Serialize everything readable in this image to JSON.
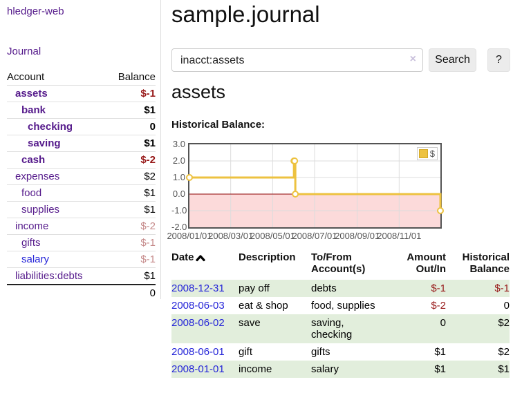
{
  "app": {
    "title": "hledger-web",
    "nav_journal": "Journal"
  },
  "colors": {
    "link_purple": "#551a8b",
    "link_blue": "#2424d8",
    "negative_strong": "#961717",
    "negative_faded": "#c58989",
    "row_green": "#e2eedc",
    "button_gray": "#ececec",
    "clear_icon": "#c9c0dc",
    "chart_series_gold": "#edc240",
    "chart_border_gray": "#545454"
  },
  "sidebar": {
    "table_headers": {
      "account": "Account",
      "balance": "Balance"
    },
    "accounts": [
      {
        "name": "assets",
        "balance": "$-1",
        "depth": 1,
        "bold": true,
        "negative": "strong",
        "link": "purple"
      },
      {
        "name": "bank",
        "balance": "$1",
        "depth": 2,
        "bold": true,
        "negative": null,
        "link": "purple"
      },
      {
        "name": "checking",
        "balance": "0",
        "depth": 3,
        "bold": true,
        "negative": null,
        "link": "purple"
      },
      {
        "name": "saving",
        "balance": "$1",
        "depth": 3,
        "bold": true,
        "negative": null,
        "link": "purple"
      },
      {
        "name": "cash",
        "balance": "$-2",
        "depth": 2,
        "bold": true,
        "negative": "strong",
        "link": "purple"
      },
      {
        "name": "expenses",
        "balance": "$2",
        "depth": 1,
        "bold": false,
        "negative": null,
        "link": "purple"
      },
      {
        "name": "food",
        "balance": "$1",
        "depth": 2,
        "bold": false,
        "negative": null,
        "link": "purple"
      },
      {
        "name": "supplies",
        "balance": "$1",
        "depth": 2,
        "bold": false,
        "negative": null,
        "link": "purple"
      },
      {
        "name": "income",
        "balance": "$-2",
        "depth": 1,
        "bold": false,
        "negative": "faded",
        "link": "purple"
      },
      {
        "name": "gifts",
        "balance": "$-1",
        "depth": 2,
        "bold": false,
        "negative": "faded",
        "link": "purple"
      },
      {
        "name": "salary",
        "balance": "$-1",
        "depth": 2,
        "bold": false,
        "negative": "faded",
        "link": "blue"
      },
      {
        "name": "liabilities:debts",
        "balance": "$1",
        "depth": 1,
        "bold": false,
        "negative": null,
        "link": "purple"
      }
    ],
    "total": "0"
  },
  "header": {
    "title": "sample.journal"
  },
  "search": {
    "value": "inacct:assets",
    "clear_icon": "×",
    "button": "Search",
    "help_button": "?"
  },
  "account_page": {
    "title": "assets",
    "chart_label": "Historical Balance:"
  },
  "chart_data": {
    "type": "line",
    "step": true,
    "series": [
      {
        "name": "$",
        "color": "#edc240",
        "points": [
          [
            "2008-01-01",
            1
          ],
          [
            "2008-06-01",
            2
          ],
          [
            "2008-06-02",
            2
          ],
          [
            "2008-06-03",
            0
          ],
          [
            "2008-12-31",
            -1
          ]
        ]
      }
    ],
    "xlim": [
      "2008-01-01",
      "2008-12-31"
    ],
    "ylim": [
      -2,
      3
    ],
    "yticks": [
      "3.0",
      "2.0",
      "1.0",
      "0.0",
      "-1.0",
      "-2.0"
    ],
    "xticks": [
      "2008/01/01",
      "2008/03/01",
      "2008/05/01",
      "2008/07/01",
      "2008/09/01",
      "2008/11/01"
    ],
    "grid": true,
    "legend_position": "top-right",
    "zero_line_color": "#8b0000",
    "negative_region_color": "#fcdada"
  },
  "register": {
    "headers": {
      "date": "Date",
      "description": "Description",
      "accounts": "To/From\nAccount(s)",
      "amount": "Amount\nOut/In",
      "balance": "Historical\nBalance"
    },
    "rows": [
      {
        "date": "2008-12-31",
        "description": "pay off",
        "accounts": "debts",
        "amount": "$-1",
        "amount_negative": true,
        "balance": "$-1",
        "balance_negative": true,
        "highlight": true
      },
      {
        "date": "2008-06-03",
        "description": "eat & shop",
        "accounts": "food, supplies",
        "amount": "$-2",
        "amount_negative": true,
        "balance": "0",
        "balance_negative": false,
        "highlight": false
      },
      {
        "date": "2008-06-02",
        "description": "save",
        "accounts": "saving,\nchecking",
        "amount": "0",
        "amount_negative": false,
        "balance": "$2",
        "balance_negative": false,
        "highlight": true
      },
      {
        "date": "2008-06-01",
        "description": "gift",
        "accounts": "gifts",
        "amount": "$1",
        "amount_negative": false,
        "balance": "$2",
        "balance_negative": false,
        "highlight": false
      },
      {
        "date": "2008-01-01",
        "description": "income",
        "accounts": "salary",
        "amount": "$1",
        "amount_negative": false,
        "balance": "$1",
        "balance_negative": false,
        "highlight": true
      }
    ]
  }
}
